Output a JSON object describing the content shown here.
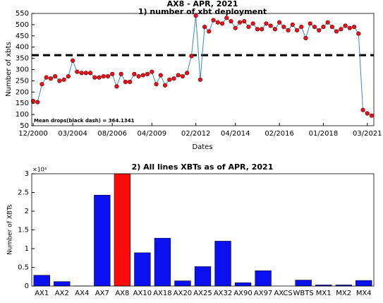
{
  "chart_data": [
    {
      "type": "line",
      "title": "AX8 - APR, 2021",
      "subtitle": "1) number of xbt deployment",
      "x_label": "Dates",
      "y_label": "Number of xbts",
      "categories": [
        "12/2000",
        null,
        null,
        null,
        null,
        null,
        null,
        null,
        null,
        "03/2004",
        null,
        null,
        null,
        null,
        null,
        null,
        null,
        null,
        "08/2006",
        null,
        null,
        null,
        null,
        null,
        null,
        null,
        null,
        "04/2009",
        null,
        null,
        null,
        null,
        null,
        null,
        null,
        null,
        null,
        "02/2012",
        null,
        null,
        null,
        null,
        null,
        null,
        null,
        null,
        "04/2014",
        null,
        null,
        null,
        null,
        null,
        null,
        null,
        null,
        null,
        "02/2016",
        null,
        null,
        null,
        null,
        null,
        null,
        null,
        null,
        null,
        "01/2018",
        null,
        null,
        null,
        null,
        null,
        null,
        null,
        null,
        null,
        "03/2021",
        null
      ],
      "values": [
        160,
        155,
        235,
        265,
        260,
        270,
        250,
        255,
        270,
        340,
        290,
        285,
        285,
        285,
        265,
        265,
        270,
        270,
        280,
        225,
        280,
        245,
        245,
        280,
        270,
        275,
        280,
        290,
        235,
        275,
        230,
        255,
        260,
        275,
        270,
        285,
        360,
        540,
        255,
        490,
        470,
        520,
        510,
        505,
        530,
        515,
        485,
        510,
        515,
        490,
        505,
        480,
        480,
        505,
        495,
        480,
        510,
        490,
        475,
        500,
        475,
        490,
        440,
        505,
        490,
        475,
        490,
        510,
        490,
        470,
        480,
        495,
        485,
        490,
        460,
        120,
        105,
        95
      ],
      "color": "#3a8bbf",
      "marker_color": "#e8101a",
      "mean_line": 364.1341,
      "annotation": "Mean drops(black dash) = 364.1341",
      "ylim": [
        50,
        550
      ],
      "yticks": [
        50,
        100,
        150,
        200,
        250,
        300,
        350,
        400,
        450,
        500,
        550
      ]
    },
    {
      "type": "bar",
      "title": "2) All lines XBTs as of APR, 2021",
      "y_label": "Number of XBTs",
      "y_exponent_label": "×10⁴",
      "categories": [
        "AX1",
        "AX2",
        "AX4",
        "AX7",
        "AX8",
        "AX10",
        "AX18",
        "AX20",
        "AX25",
        "AX32",
        "AX90",
        "AX97",
        "AXCS",
        "WBTS",
        "MX1",
        "MX2",
        "MX4"
      ],
      "values": [
        2900,
        1200,
        50,
        24300,
        30000,
        8900,
        12800,
        1400,
        5200,
        12000,
        900,
        4100,
        0,
        1600,
        300,
        300,
        1500
      ],
      "colors": [
        "#0a10f0",
        "#0a10f0",
        "#0a10f0",
        "#0a10f0",
        "#ff0a0a",
        "#0a10f0",
        "#0a10f0",
        "#0a10f0",
        "#0a10f0",
        "#0a10f0",
        "#0a10f0",
        "#0a10f0",
        "#0a10f0",
        "#0a10f0",
        "#0a10f0",
        "#0a10f0",
        "#0a10f0"
      ],
      "ylim": [
        0,
        30000
      ],
      "yticks": [
        0,
        {
          "value": 5000,
          "label": "0.5"
        },
        {
          "value": 10000,
          "label": "1"
        },
        {
          "value": 15000,
          "label": "1.5"
        },
        {
          "value": 20000,
          "label": "2"
        },
        {
          "value": 25000,
          "label": "2.5"
        },
        {
          "value": 30000,
          "label": "3"
        }
      ]
    }
  ]
}
